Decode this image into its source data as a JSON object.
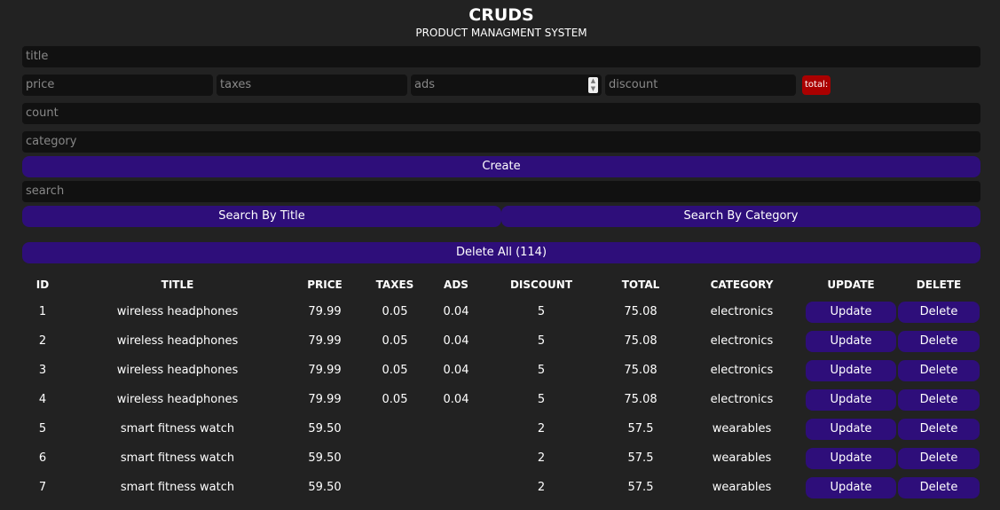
{
  "header": {
    "title": "CRUDS",
    "subtitle": "PRODUCT MANAGMENT SYSTEM"
  },
  "form": {
    "title_placeholder": "title",
    "price_placeholder": "price",
    "taxes_placeholder": "taxes",
    "ads_placeholder": "ads",
    "discount_placeholder": "discount",
    "total_label": "total:",
    "count_placeholder": "count",
    "category_placeholder": "category",
    "create_label": "Create",
    "total_color": "#aa0000"
  },
  "search": {
    "placeholder": "search",
    "by_title_label": "Search By Title",
    "by_category_label": "Search By Category"
  },
  "delete_all_label": "Delete All (114)",
  "accent_color": "#2e0e7a",
  "table": {
    "headers": [
      "ID",
      "TITLE",
      "PRICE",
      "TAXES",
      "ADS",
      "DISCOUNT",
      "TOTAL",
      "CATEGORY",
      "UPDATE",
      "DELETE"
    ],
    "update_label": "Update",
    "delete_label": "Delete",
    "rows": [
      {
        "id": "1",
        "title": "wireless headphones",
        "price": "79.99",
        "taxes": "0.05",
        "ads": "0.04",
        "discount": "5",
        "total": "75.08",
        "category": "electronics"
      },
      {
        "id": "2",
        "title": "wireless headphones",
        "price": "79.99",
        "taxes": "0.05",
        "ads": "0.04",
        "discount": "5",
        "total": "75.08",
        "category": "electronics"
      },
      {
        "id": "3",
        "title": "wireless headphones",
        "price": "79.99",
        "taxes": "0.05",
        "ads": "0.04",
        "discount": "5",
        "total": "75.08",
        "category": "electronics"
      },
      {
        "id": "4",
        "title": "wireless headphones",
        "price": "79.99",
        "taxes": "0.05",
        "ads": "0.04",
        "discount": "5",
        "total": "75.08",
        "category": "electronics"
      },
      {
        "id": "5",
        "title": "smart fitness watch",
        "price": "59.50",
        "taxes": "",
        "ads": "",
        "discount": "2",
        "total": "57.5",
        "category": "wearables"
      },
      {
        "id": "6",
        "title": "smart fitness watch",
        "price": "59.50",
        "taxes": "",
        "ads": "",
        "discount": "2",
        "total": "57.5",
        "category": "wearables"
      },
      {
        "id": "7",
        "title": "smart fitness watch",
        "price": "59.50",
        "taxes": "",
        "ads": "",
        "discount": "2",
        "total": "57.5",
        "category": "wearables"
      }
    ]
  }
}
